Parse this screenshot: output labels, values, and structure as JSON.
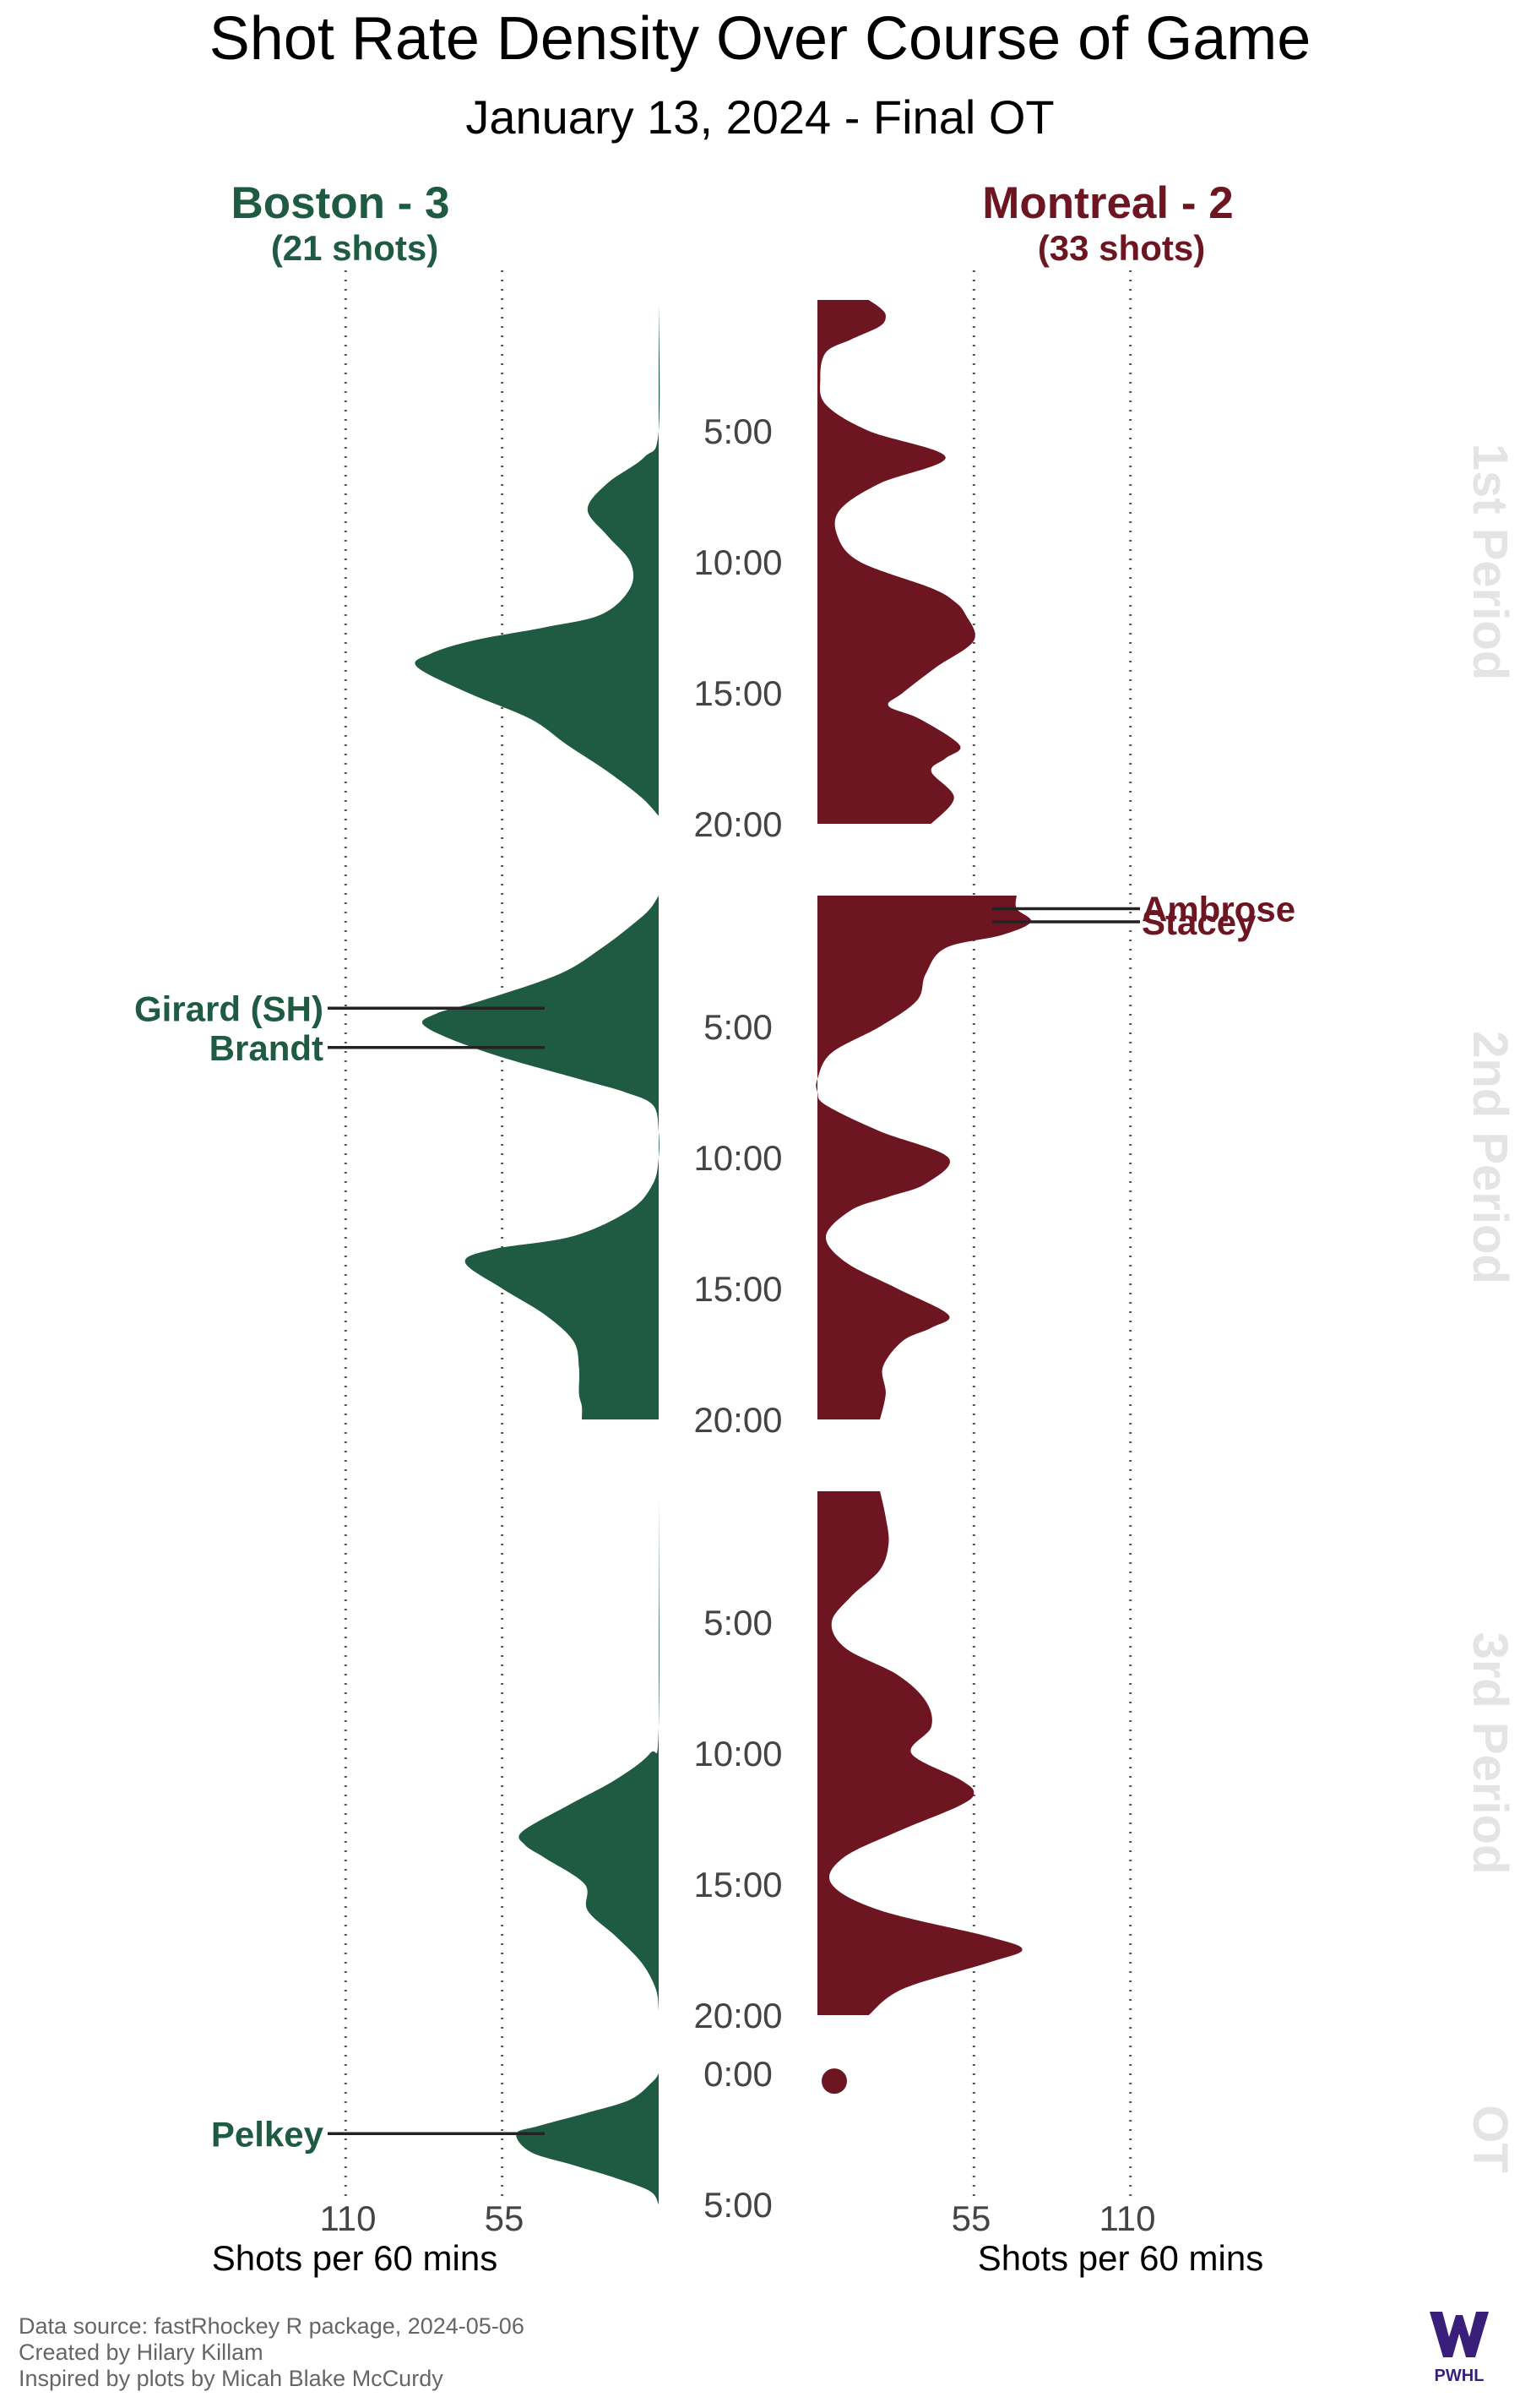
{
  "title": "Shot Rate Density Over Course of Game",
  "subtitle": "January 13, 2024 - Final OT",
  "home": {
    "label": "Boston - 3",
    "shots_label": "(21 shots)",
    "color": "#1f5a43"
  },
  "away": {
    "label": "Montreal - 2",
    "shots_label": "(33 shots)",
    "color": "#6d1621"
  },
  "period_label_color": "#e4e4e4",
  "x_axis": {
    "home_ticks": [
      "110",
      "55"
    ],
    "away_ticks": [
      "55",
      "110"
    ],
    "label": "Shots per 60 mins"
  },
  "caption": [
    "Data source: fastRhockey R package, 2024-05-06",
    "Created by Hilary Killam",
    "Inspired by plots by Micah Blake McCurdy"
  ],
  "logo_text": "PWHL",
  "chart_data": {
    "type": "area",
    "xlabel": "Shots per 60 mins",
    "grid_values": [
      55,
      110
    ],
    "periods": [
      {
        "label": "1st Period",
        "length_min": 20,
        "ticks": [
          "5:00",
          "10:00",
          "15:00",
          "20:00"
        ],
        "home": {
          "t": [
            0,
            5,
            6,
            7,
            8,
            9,
            10,
            11,
            12,
            12.5,
            13,
            13.5,
            14,
            15,
            16,
            17,
            18,
            19,
            19.7
          ],
          "rate": [
            0,
            0,
            5,
            18,
            25,
            18,
            10,
            10,
            20,
            40,
            65,
            80,
            85,
            67,
            45,
            32,
            18,
            6,
            0
          ]
        },
        "away": {
          "t": [
            0,
            0.3,
            0.6,
            1,
            1.5,
            2,
            3,
            4,
            5,
            6,
            7,
            8,
            9,
            10,
            11,
            11.5,
            12,
            13,
            14,
            15,
            15.5,
            16,
            17,
            17.5,
            18,
            19,
            20
          ],
          "rate": [
            18,
            22,
            24,
            22,
            12,
            3,
            1,
            3,
            18,
            45,
            22,
            8,
            7,
            15,
            40,
            48,
            52,
            55,
            42,
            30,
            25,
            36,
            50,
            45,
            40,
            48,
            40
          ]
        },
        "markers": []
      },
      {
        "label": "2nd Period",
        "length_min": 20,
        "ticks": [
          "5:00",
          "10:00",
          "15:00",
          "20:00"
        ],
        "home": {
          "t": [
            0,
            0.5,
            1,
            2,
            3,
            4,
            4.5,
            5,
            6,
            7,
            7.5,
            8,
            9,
            10,
            11,
            12,
            13,
            13.5,
            14,
            15,
            16,
            17,
            18,
            19,
            19.5,
            20
          ],
          "rate": [
            0,
            3,
            8,
            20,
            35,
            62,
            78,
            82,
            60,
            28,
            12,
            2,
            0,
            0,
            2,
            10,
            30,
            58,
            68,
            55,
            40,
            30,
            28,
            28,
            27,
            27
          ]
        },
        "away": {
          "t": [
            0,
            0.5,
            1,
            1.5,
            2,
            3,
            4,
            5,
            6,
            7,
            7.5,
            8,
            9,
            10,
            11,
            11.5,
            12,
            13,
            14,
            15,
            16,
            16.5,
            17,
            18,
            19,
            20
          ],
          "rate": [
            70,
            70,
            75,
            65,
            45,
            38,
            35,
            22,
            5,
            0,
            0,
            3,
            22,
            46,
            38,
            25,
            12,
            3,
            10,
            28,
            46,
            40,
            30,
            23,
            24,
            22
          ]
        },
        "markers": [
          {
            "side": "home",
            "name": "Girard (SH)",
            "t": 4.3
          },
          {
            "side": "home",
            "name": "Brandt",
            "t": 5.8
          },
          {
            "side": "away",
            "name": "Ambrose",
            "t": 0.5
          },
          {
            "side": "away",
            "name": "Stacey",
            "t": 1.0
          }
        ]
      },
      {
        "label": "3rd Period",
        "length_min": 20,
        "ticks": [
          "5:00",
          "10:00",
          "15:00",
          "20:00"
        ],
        "home": {
          "t": [
            0,
            9,
            10,
            11,
            12,
            13,
            13.5,
            14,
            15,
            16,
            17,
            18,
            19,
            19.8
          ],
          "rate": [
            0,
            0,
            3,
            15,
            32,
            48,
            47,
            40,
            26,
            25,
            15,
            6,
            1,
            0
          ]
        },
        "away": {
          "t": [
            0,
            1,
            2,
            3,
            4,
            5,
            6,
            7,
            8,
            9,
            10,
            11,
            11.5,
            12,
            13,
            14,
            15,
            16,
            17,
            17.5,
            18,
            19,
            20
          ],
          "rate": [
            22,
            24,
            25,
            22,
            12,
            5,
            10,
            28,
            38,
            40,
            33,
            50,
            55,
            50,
            28,
            9,
            5,
            22,
            60,
            72,
            60,
            30,
            18
          ]
        },
        "markers": []
      },
      {
        "label": "OT",
        "length_min": 5,
        "ticks": [
          "0:00",
          "5:00"
        ],
        "home": {
          "t": [
            0,
            0.3,
            1,
            1.5,
            2,
            2.3,
            3,
            3.5,
            4,
            4.5,
            5
          ],
          "rate": [
            0,
            2,
            10,
            25,
            42,
            50,
            45,
            30,
            15,
            3,
            0
          ]
        },
        "away": {
          "t": [
            0.1
          ],
          "rate": [
            3
          ],
          "dot": true
        },
        "markers": [
          {
            "side": "home",
            "name": "Pelkey",
            "t": 2.3
          }
        ]
      }
    ]
  }
}
